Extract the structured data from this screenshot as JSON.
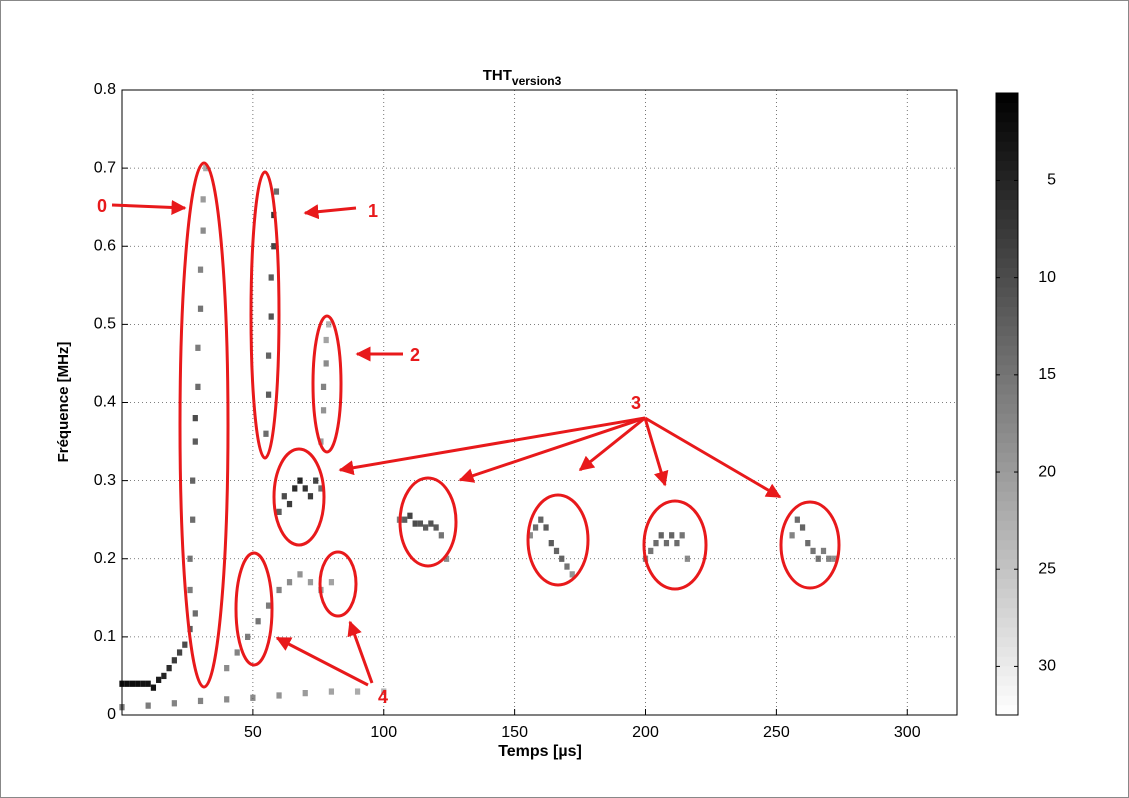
{
  "chart_data": {
    "type": "heatmap",
    "title": "THT",
    "title_subscript": "version3",
    "x_label": "Temps [µs]",
    "y_label": "Fréquence [MHz]",
    "xlim": [
      0,
      319
    ],
    "xticks": [
      50,
      100,
      150,
      200,
      250,
      300
    ],
    "ylim": [
      0,
      0.8
    ],
    "yticks": [
      0,
      0.1,
      0.2,
      0.3,
      0.4,
      0.5,
      0.6,
      0.7,
      0.8
    ],
    "grid": true,
    "clim": [
      0.5,
      32.5
    ],
    "cticks": [
      5,
      10,
      15,
      20,
      25,
      30
    ],
    "series": [
      {
        "x": [
          0,
          2,
          4,
          6,
          8,
          10,
          12,
          14,
          16,
          18,
          20,
          22,
          24,
          26,
          28
        ],
        "y": [
          0.04,
          0.04,
          0.04,
          0.04,
          0.04,
          0.04,
          0.035,
          0.045,
          0.05,
          0.06,
          0.07,
          0.08,
          0.09,
          0.11,
          0.13
        ],
        "values": [
          2,
          2,
          2,
          2,
          3,
          3,
          3,
          4,
          5,
          6,
          8,
          9,
          10,
          12,
          14
        ]
      },
      {
        "x": [
          26,
          26,
          27,
          27,
          28,
          28,
          29,
          29,
          30,
          30,
          31,
          31,
          32
        ],
        "y": [
          0.16,
          0.2,
          0.25,
          0.3,
          0.35,
          0.38,
          0.42,
          0.47,
          0.52,
          0.57,
          0.62,
          0.66,
          0.7
        ],
        "values": [
          16,
          15,
          14,
          13,
          12,
          10,
          14,
          16,
          15,
          17,
          18,
          20,
          22
        ]
      },
      {
        "x": [
          55,
          56,
          56,
          57,
          57,
          58,
          58,
          59
        ],
        "y": [
          0.36,
          0.41,
          0.46,
          0.51,
          0.56,
          0.6,
          0.64,
          0.67
        ],
        "values": [
          14,
          12,
          13,
          11,
          12,
          9,
          7,
          14
        ]
      },
      {
        "x": [
          76,
          77,
          77,
          78,
          78,
          79
        ],
        "y": [
          0.35,
          0.39,
          0.42,
          0.45,
          0.48,
          0.5
        ],
        "values": [
          20,
          19,
          17,
          18,
          21,
          23
        ]
      },
      {
        "x": [
          60,
          62,
          64,
          66,
          68,
          70,
          72,
          74,
          76
        ],
        "y": [
          0.26,
          0.28,
          0.27,
          0.29,
          0.3,
          0.29,
          0.28,
          0.3,
          0.29
        ],
        "values": [
          12,
          10,
          8,
          6,
          5,
          7,
          8,
          9,
          14
        ]
      },
      {
        "x": [
          106,
          108,
          110,
          112,
          114,
          116,
          118,
          120,
          122,
          124
        ],
        "y": [
          0.25,
          0.25,
          0.255,
          0.245,
          0.245,
          0.24,
          0.245,
          0.24,
          0.23,
          0.2
        ],
        "values": [
          16,
          12,
          9,
          10,
          11,
          12,
          11,
          12,
          15,
          18
        ]
      },
      {
        "x": [
          156,
          158,
          160,
          162,
          164,
          166,
          168,
          170,
          172
        ],
        "y": [
          0.23,
          0.24,
          0.25,
          0.24,
          0.22,
          0.21,
          0.2,
          0.19,
          0.18
        ],
        "values": [
          18,
          14,
          13,
          12,
          12,
          13,
          13,
          15,
          19
        ]
      },
      {
        "x": [
          200,
          202,
          204,
          206,
          208,
          210,
          212,
          214,
          216
        ],
        "y": [
          0.2,
          0.21,
          0.22,
          0.23,
          0.22,
          0.23,
          0.22,
          0.23,
          0.2
        ],
        "values": [
          17,
          15,
          14,
          13,
          14,
          13,
          14,
          15,
          18
        ]
      },
      {
        "x": [
          256,
          258,
          260,
          262,
          264,
          266,
          268,
          270,
          272
        ],
        "y": [
          0.23,
          0.25,
          0.24,
          0.22,
          0.21,
          0.2,
          0.21,
          0.2,
          0.2
        ],
        "values": [
          17,
          14,
          13,
          14,
          15,
          15,
          16,
          17,
          19
        ]
      },
      {
        "x": [
          40,
          44,
          48,
          52,
          56,
          60,
          64,
          68,
          72,
          76,
          80
        ],
        "y": [
          0.06,
          0.08,
          0.1,
          0.12,
          0.14,
          0.16,
          0.17,
          0.18,
          0.17,
          0.16,
          0.17
        ],
        "values": [
          18,
          17,
          16,
          15,
          16,
          17,
          18,
          19,
          20,
          20,
          21
        ]
      },
      {
        "x": [
          0,
          10,
          20,
          30,
          40,
          50,
          60,
          70,
          80,
          90,
          100
        ],
        "y": [
          0.01,
          0.012,
          0.015,
          0.018,
          0.02,
          0.022,
          0.025,
          0.028,
          0.03,
          0.03,
          0.03
        ],
        "values": [
          16,
          16,
          17,
          17,
          18,
          18,
          19,
          20,
          21,
          22,
          23
        ]
      }
    ],
    "annotations": [
      "0",
      "1",
      "2",
      "3",
      "4"
    ]
  }
}
